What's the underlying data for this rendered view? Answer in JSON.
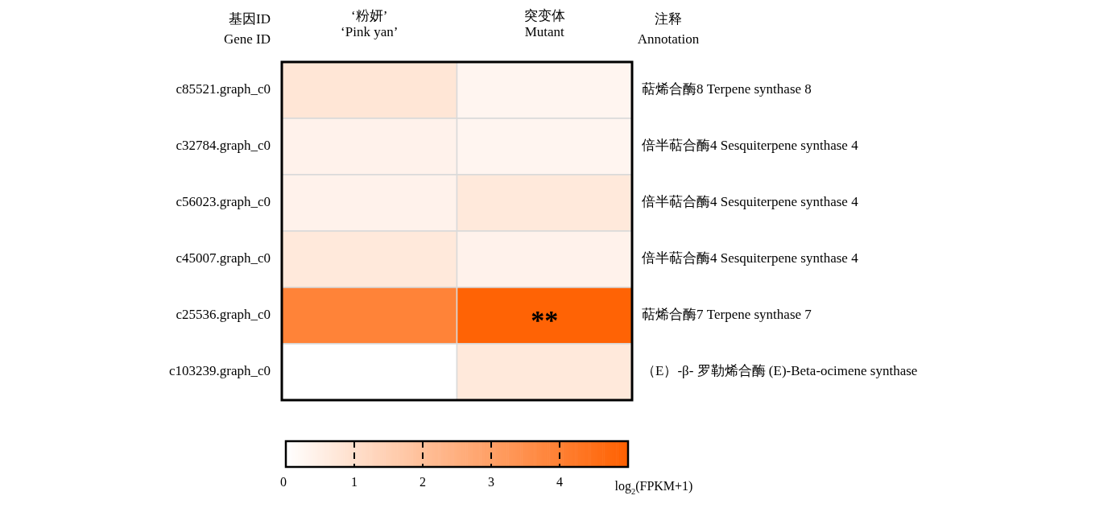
{
  "chart_data": {
    "type": "heatmap",
    "ylabel": "基因ID\nGene ID",
    "y2label": "注释\nAnnotation",
    "clabel": "log$_{2}$(FPKM+1)",
    "categories": [
      "‘粉妍’\n‘Pink yan’",
      "突变体\nMutant"
    ],
    "y_categories": [
      "c85521.graph_c0",
      "c32784.graph_c0",
      "c56023.graph_c0",
      "c45007.graph_c0",
      "c25536.graph_c0",
      "c103239.graph_c0"
    ],
    "y2_categories": [
      "萜烯合酶8 Terpene synthase 8",
      "倍半萜合酶4 Sesquiterpene synthase 4",
      "倍半萜合酶4 Sesquiterpene synthase 4",
      "倍半萜合酶4 Sesquiterpene synthase 4",
      "萜烯合酶7 Terpene synthase 7",
      "（E）-β- 罗勒烯合酶 (E)-Beta-ocimene synthase"
    ],
    "cells": [
      [
        0.8,
        0.3
      ],
      [
        0.4,
        0.3
      ],
      [
        0.4,
        0.7
      ],
      [
        0.7,
        0.4
      ],
      [
        3.9,
        4.9
      ],
      [
        0,
        0.7
      ]
    ],
    "clim": [
      0,
      5
    ],
    "cticks": [
      0,
      1,
      2,
      3,
      4
    ],
    "annotations": [
      "**"
    ]
  }
}
